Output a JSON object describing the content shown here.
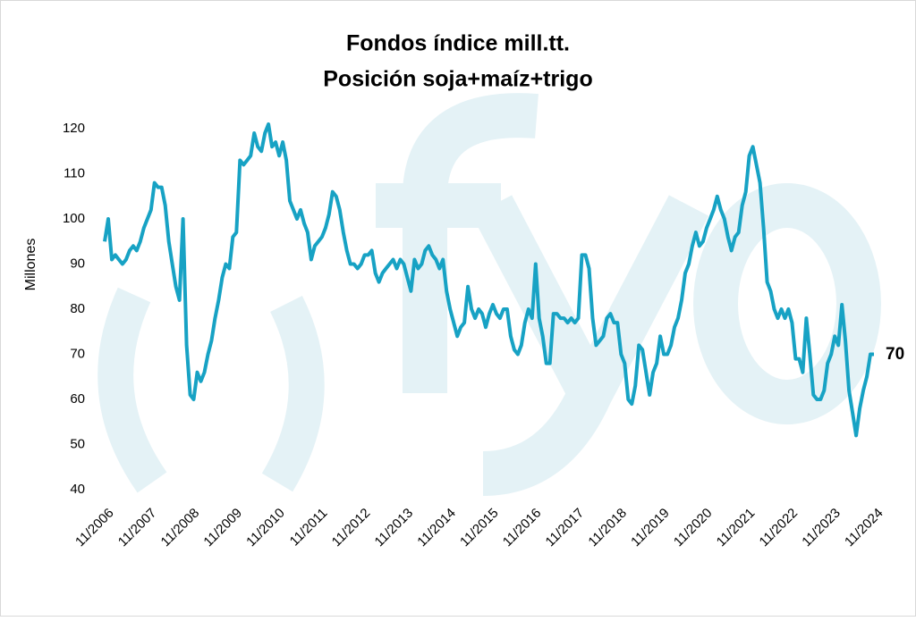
{
  "chart_data": {
    "type": "line",
    "title": "Fondos índice mill.tt.",
    "subtitle": "Posición soja+maíz+trigo",
    "y_label": "Millones",
    "annotations": [
      {
        "text": "70"
      }
    ],
    "categories": [
      "11/2006",
      null,
      null,
      null,
      null,
      null,
      null,
      null,
      null,
      null,
      null,
      null,
      "11/2007",
      null,
      null,
      null,
      null,
      null,
      null,
      null,
      null,
      null,
      null,
      null,
      "11/2008",
      null,
      null,
      null,
      null,
      null,
      null,
      null,
      null,
      null,
      null,
      null,
      "11/2009",
      null,
      null,
      null,
      null,
      null,
      null,
      null,
      null,
      null,
      null,
      null,
      "11/2010",
      null,
      null,
      null,
      null,
      null,
      null,
      null,
      null,
      null,
      null,
      null,
      "11/2011",
      null,
      null,
      null,
      null,
      null,
      null,
      null,
      null,
      null,
      null,
      null,
      "11/2012",
      null,
      null,
      null,
      null,
      null,
      null,
      null,
      null,
      null,
      null,
      null,
      "11/2013",
      null,
      null,
      null,
      null,
      null,
      null,
      null,
      null,
      null,
      null,
      null,
      "11/2014",
      null,
      null,
      null,
      null,
      null,
      null,
      null,
      null,
      null,
      null,
      null,
      "11/2015",
      null,
      null,
      null,
      null,
      null,
      null,
      null,
      null,
      null,
      null,
      null,
      "11/2016",
      null,
      null,
      null,
      null,
      null,
      null,
      null,
      null,
      null,
      null,
      null,
      "11/2017",
      null,
      null,
      null,
      null,
      null,
      null,
      null,
      null,
      null,
      null,
      null,
      "11/2018",
      null,
      null,
      null,
      null,
      null,
      null,
      null,
      null,
      null,
      null,
      null,
      "11/2019",
      null,
      null,
      null,
      null,
      null,
      null,
      null,
      null,
      null,
      null,
      null,
      "11/2020",
      null,
      null,
      null,
      null,
      null,
      null,
      null,
      null,
      null,
      null,
      null,
      "11/2021",
      null,
      null,
      null,
      null,
      null,
      null,
      null,
      null,
      null,
      null,
      null,
      "11/2022",
      null,
      null,
      null,
      null,
      null,
      null,
      null,
      null,
      null,
      null,
      null,
      "11/2023",
      null,
      null,
      null,
      null,
      null,
      null,
      null,
      null,
      null,
      null,
      null,
      "11/2024"
    ],
    "series": [
      {
        "name": "Posición soja+maíz+trigo",
        "color": "#17a2c4",
        "values": [
          95,
          100,
          91,
          92,
          91,
          90,
          91,
          93,
          94,
          93,
          95,
          98,
          100,
          102,
          108,
          107,
          107,
          103,
          95,
          90,
          85,
          82,
          100,
          72,
          61,
          60,
          66,
          64,
          66,
          70,
          73,
          78,
          82,
          87,
          90,
          89,
          96,
          97,
          113,
          112,
          113,
          114,
          119,
          116,
          115,
          119,
          121,
          116,
          117,
          114,
          117,
          113,
          104,
          102,
          100,
          102,
          99,
          97,
          91,
          94,
          95,
          96,
          98,
          101,
          106,
          105,
          102,
          97,
          93,
          90,
          90,
          89,
          90,
          92,
          92,
          93,
          88,
          86,
          88,
          89,
          90,
          91,
          89,
          91,
          90,
          87,
          84,
          91,
          89,
          90,
          93,
          94,
          92,
          91,
          89,
          91,
          84,
          80,
          77,
          74,
          76,
          77,
          85,
          80,
          78,
          80,
          79,
          76,
          79,
          81,
          79,
          78,
          80,
          80,
          74,
          71,
          70,
          72,
          77,
          80,
          78,
          90,
          78,
          74,
          68,
          68,
          79,
          79,
          78,
          78,
          77,
          78,
          77,
          78,
          92,
          92,
          89,
          78,
          72,
          73,
          74,
          78,
          79,
          77,
          77,
          70,
          68,
          60,
          59,
          63,
          72,
          71,
          66,
          61,
          66,
          68,
          74,
          70,
          70,
          72,
          76,
          78,
          82,
          88,
          90,
          94,
          97,
          94,
          95,
          98,
          100,
          102,
          105,
          102,
          100,
          96,
          93,
          96,
          97,
          103,
          106,
          114,
          116,
          112,
          108,
          98,
          86,
          84,
          80,
          78,
          80,
          78,
          80,
          77,
          69,
          69,
          66,
          78,
          70,
          61,
          60,
          60,
          62,
          68,
          70,
          74,
          72,
          81,
          73,
          62,
          57,
          52,
          58,
          62,
          65,
          70,
          70
        ]
      }
    ],
    "ylim": [
      40,
      120
    ],
    "yticks": [
      40,
      50,
      60,
      70,
      80,
      90,
      100,
      110,
      120
    ],
    "grid": false
  }
}
